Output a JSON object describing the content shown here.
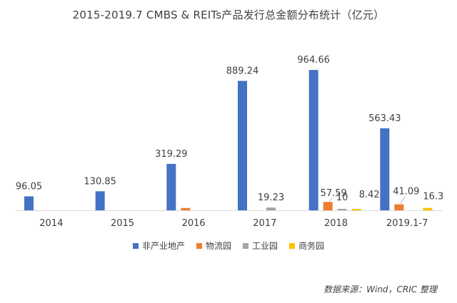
{
  "chart_data": {
    "type": "bar",
    "title": "2015-2019.7 CMBS & REITs产品发行总金额分布统计（亿元）",
    "categories": [
      "2014",
      "2015",
      "2016",
      "2017",
      "2018",
      "2019.1-7"
    ],
    "series": [
      {
        "name": "非产业地产",
        "color": "#4472C4",
        "values": [
          96.05,
          130.85,
          319.29,
          889.24,
          964.66,
          563.43
        ]
      },
      {
        "name": "物流园",
        "color": "#ED7D31",
        "values": [
          null,
          null,
          16,
          null,
          57.59,
          41.09
        ]
      },
      {
        "name": "工业园",
        "color": "#A5A5A5",
        "values": [
          null,
          null,
          null,
          19.23,
          10,
          null
        ]
      },
      {
        "name": "商务园",
        "color": "#FFC000",
        "values": [
          null,
          null,
          null,
          null,
          8.42,
          16.3
        ]
      }
    ],
    "data_labels": [
      {
        "category": "2014",
        "series": "非产业地产",
        "text": "96.05"
      },
      {
        "category": "2015",
        "series": "非产业地产",
        "text": "130.85"
      },
      {
        "category": "2016",
        "series": "非产业地产",
        "text": "319.29"
      },
      {
        "category": "2017",
        "series": "非产业地产",
        "text": "889.24"
      },
      {
        "category": "2017",
        "series": "工业园",
        "text": "19.23"
      },
      {
        "category": "2018",
        "series": "非产业地产",
        "text": "964.66"
      },
      {
        "category": "2018",
        "series": "物流园",
        "text": "57.59"
      },
      {
        "category": "2018",
        "series": "工业园",
        "text": "10"
      },
      {
        "category": "2018",
        "series": "商务园",
        "text": "8.42"
      },
      {
        "category": "2019.1-7",
        "series": "非产业地产",
        "text": "563.43"
      },
      {
        "category": "2019.1-7",
        "series": "物流园",
        "text": "41.09"
      },
      {
        "category": "2019.1-7",
        "series": "商务园",
        "text": "16.3"
      }
    ],
    "ylim": [
      0,
      1000
    ],
    "grid": false,
    "legend_position": "bottom"
  },
  "source_note": "数据来源：Wind，CRIC 整理"
}
